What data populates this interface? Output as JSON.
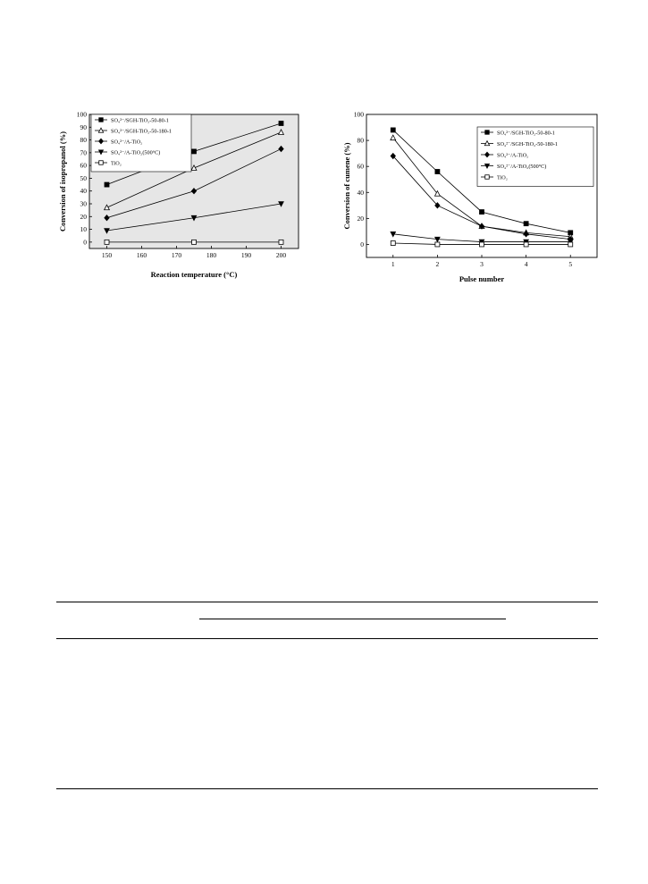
{
  "chart_data": [
    {
      "type": "line",
      "title": "",
      "xlabel": "Reaction temperature (°C)",
      "ylabel": "Conversion of isopropanol (%)",
      "xlim": [
        145,
        205
      ],
      "ylim": [
        -5,
        100
      ],
      "xticks": [
        150,
        160,
        170,
        180,
        190,
        200
      ],
      "yticks": [
        0,
        10,
        20,
        30,
        40,
        50,
        60,
        70,
        80,
        90,
        100
      ],
      "x": [
        150,
        175,
        200
      ],
      "grid": false,
      "legend_position": "top-left",
      "series": [
        {
          "name": "SO₄²⁻/SGH-TiO₂-50-80-1",
          "marker": "square-filled",
          "values": [
            45,
            71,
            93
          ]
        },
        {
          "name": "SO₄²⁻/SGH-TiO₂-50-180-1",
          "marker": "triangle-up-open",
          "values": [
            27,
            58,
            86
          ]
        },
        {
          "name": "SO₄²⁻/A-TiO₂",
          "marker": "diamond-filled",
          "values": [
            19,
            40,
            73
          ]
        },
        {
          "name": "SO₄²⁻/A-TiO₂(500°C)",
          "marker": "triangle-down-filled",
          "values": [
            9,
            19,
            30
          ]
        },
        {
          "name": "TiO₂",
          "marker": "square-open",
          "values": [
            0,
            0,
            0
          ]
        }
      ]
    },
    {
      "type": "line",
      "title": "",
      "xlabel": "Pulse number",
      "ylabel": "Conversion of cumene (%)",
      "xlim": [
        0.4,
        5.6
      ],
      "ylim": [
        -10,
        100
      ],
      "xticks": [
        1,
        2,
        3,
        4,
        5
      ],
      "yticks": [
        0,
        20,
        40,
        60,
        80,
        100
      ],
      "x": [
        1,
        2,
        3,
        4,
        5
      ],
      "grid": false,
      "legend_position": "top-right",
      "series": [
        {
          "name": "SO₄²⁻/SGH-TiO₂-50-80-1",
          "marker": "square-filled",
          "values": [
            88,
            56,
            25,
            16,
            9
          ]
        },
        {
          "name": "SO₄²⁻/SGH-TiO₂-50-180-1",
          "marker": "triangle-up-open",
          "values": [
            82,
            39,
            14,
            9,
            6
          ]
        },
        {
          "name": "SO₄²⁻/A-TiO₂",
          "marker": "diamond-filled",
          "values": [
            68,
            30,
            14,
            8,
            4
          ]
        },
        {
          "name": "SO₄²⁻/A-TiO₂(500°C)",
          "marker": "triangle-down-filled",
          "values": [
            8,
            4,
            2,
            2,
            2
          ]
        },
        {
          "name": "TiO₂",
          "marker": "square-open",
          "values": [
            1,
            0,
            0,
            0,
            0
          ]
        }
      ]
    }
  ]
}
